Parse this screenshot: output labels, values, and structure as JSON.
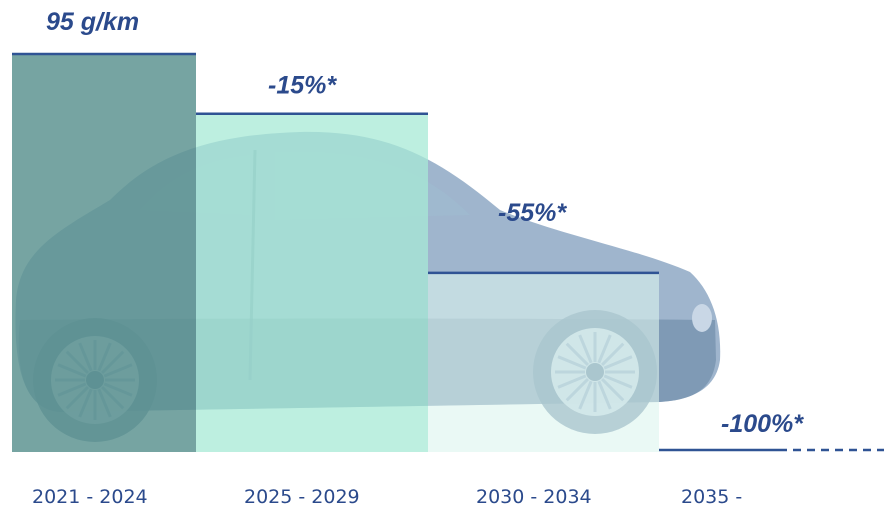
{
  "colors": {
    "text": "#2b4a8c",
    "line": "#2f5394",
    "car_body": "#8ea8c4",
    "car_dark": "#5f7f9e",
    "car_light": "#c9d7e6",
    "window": "#9fb9cf",
    "bars": [
      "#5e9492",
      "#a7ead6",
      "#dcf5ee"
    ]
  },
  "chart_data": {
    "type": "bar",
    "title": "",
    "xlabel": "",
    "ylabel": "",
    "ylim": [
      0,
      100
    ],
    "categories": [
      "2021 - 2024",
      "2025 - 2029",
      "2030 - 2034",
      "2035 -"
    ],
    "values": [
      100,
      85,
      45,
      0
    ],
    "value_labels": [
      "95 g/km",
      "-15%*",
      "-55%*",
      "-100%*"
    ],
    "grid": false,
    "legend": "none"
  }
}
